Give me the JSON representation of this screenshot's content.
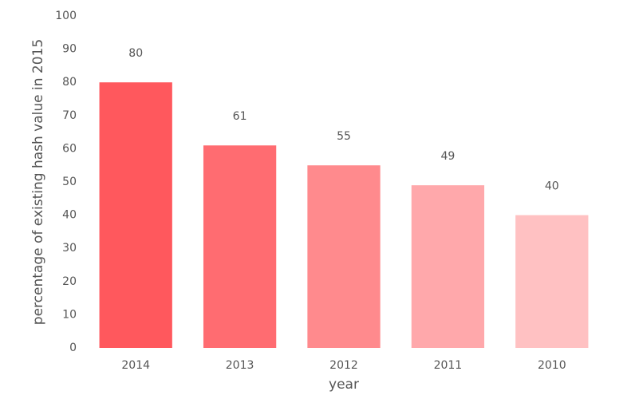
{
  "chart_data": {
    "type": "bar",
    "x_label": "year",
    "y_label": "percentage of existing hash value in 2015",
    "categories": [
      "2014",
      "2013",
      "2012",
      "2011",
      "2010"
    ],
    "values": [
      80,
      61,
      55,
      49,
      40
    ],
    "colors": [
      "#ff585d",
      "#ff6c71",
      "#ff8a8d",
      "#ffa8ab",
      "#ffc1c2"
    ],
    "ylim": [
      0,
      100
    ],
    "yticks": [
      0,
      10,
      20,
      30,
      40,
      50,
      60,
      70,
      80,
      90,
      100
    ],
    "grid": false
  }
}
